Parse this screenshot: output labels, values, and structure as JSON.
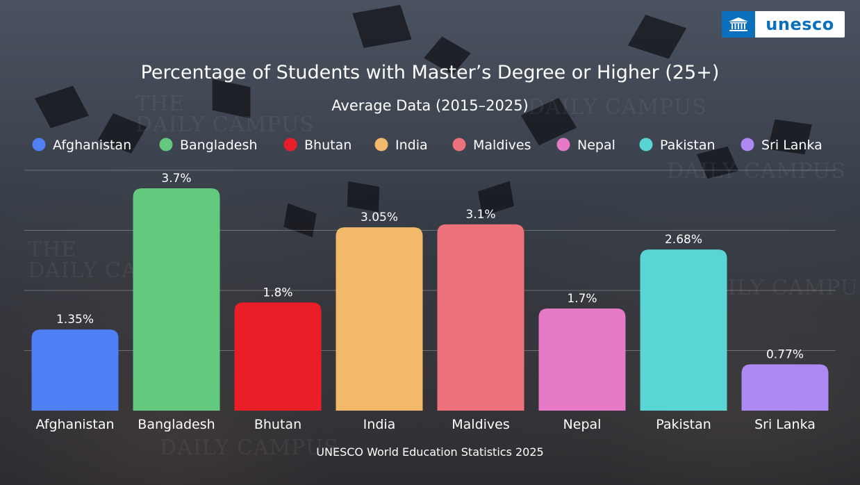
{
  "brand": {
    "logo_text": "unesco"
  },
  "watermark_text": [
    "THE",
    "DAILY CAMPUS"
  ],
  "chart_data": {
    "type": "bar",
    "title": "Percentage of Students with Master’s Degree or Higher (25+)",
    "subtitle": "Average Data (2015–2025)",
    "categories": [
      "Afghanistan",
      "Bangladesh",
      "Bhutan",
      "India",
      "Maldives",
      "Nepal",
      "Pakistan",
      "Sri Lanka"
    ],
    "values": [
      1.35,
      3.7,
      1.8,
      3.05,
      3.1,
      1.7,
      2.68,
      0.77
    ],
    "value_labels": [
      "1.35%",
      "3.7%",
      "1.8%",
      "3.05%",
      "3.1%",
      "1.7%",
      "2.68%",
      "0.77%"
    ],
    "colors": [
      "#4f7ff5",
      "#62c97e",
      "#ea1e27",
      "#f2b96b",
      "#ee727c",
      "#e67ac9",
      "#5ad5d5",
      "#ac89f3"
    ],
    "legend": [
      "Afghanistan",
      "Bangladesh",
      "Bhutan",
      "India",
      "Maldives",
      "Nepal",
      "Pakistan",
      "Sri Lanka"
    ],
    "legend_position": "top",
    "ylim": [
      0,
      4
    ],
    "grid": true,
    "xlabel": "",
    "ylabel": ""
  },
  "footer": {
    "source": "UNESCO World Education Statistics 2025"
  }
}
